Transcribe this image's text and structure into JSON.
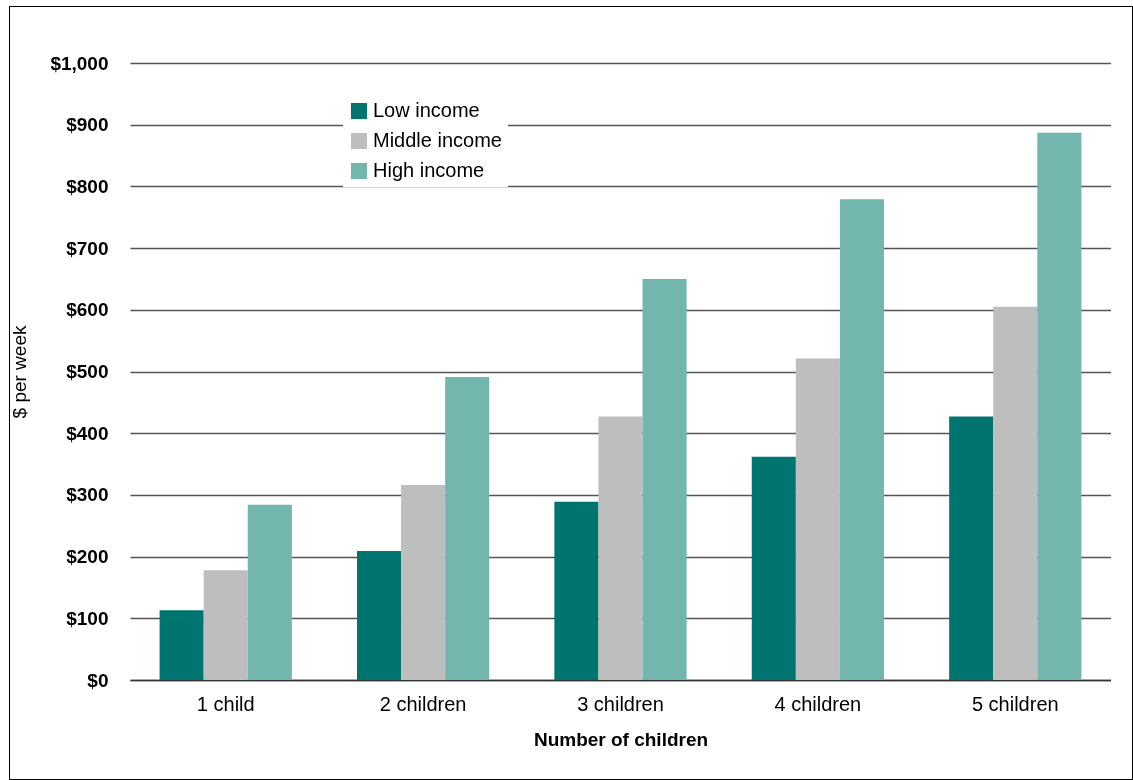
{
  "chart_data": {
    "type": "bar",
    "xlabel": "Number of children",
    "ylabel": "$ per week",
    "categories": [
      "1 child",
      "2 children",
      "3 children",
      "4 children",
      "5 children"
    ],
    "series": [
      {
        "name": "Low income",
        "color": "#00746f",
        "values": [
          113,
          209,
          289,
          362,
          427
        ]
      },
      {
        "name": "Middle income",
        "color": "#bebebe",
        "values": [
          178,
          316,
          427,
          521,
          605
        ]
      },
      {
        "name": "High income",
        "color": "#72b6ad",
        "values": [
          284,
          491,
          650,
          779,
          887
        ]
      }
    ],
    "ylim": [
      0,
      1000
    ],
    "yticks": [
      {
        "value": 0,
        "label": "$0"
      },
      {
        "value": 100,
        "label": "$100"
      },
      {
        "value": 200,
        "label": "$200"
      },
      {
        "value": 300,
        "label": "$300"
      },
      {
        "value": 400,
        "label": "$400"
      },
      {
        "value": 500,
        "label": "$500"
      },
      {
        "value": 600,
        "label": "$600"
      },
      {
        "value": 700,
        "label": "$700"
      },
      {
        "value": 800,
        "label": "$800"
      },
      {
        "value": 900,
        "label": "$900"
      },
      {
        "value": 1000,
        "label": "$1,000"
      }
    ],
    "grid": "y",
    "legend": "top left"
  }
}
